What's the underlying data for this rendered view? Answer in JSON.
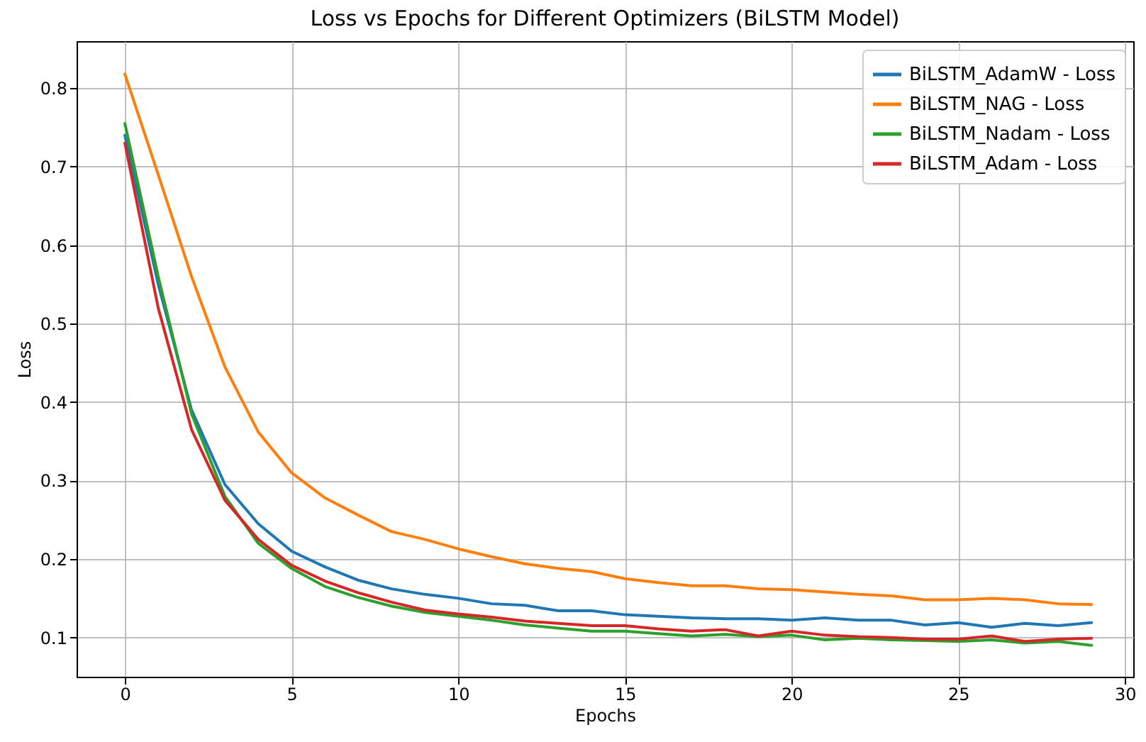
{
  "chart_data": {
    "type": "line",
    "title": "Loss vs Epochs for Different Optimizers (BiLSTM Model)",
    "xlabel": "Epochs",
    "ylabel": "Loss",
    "x": [
      0,
      1,
      2,
      3,
      4,
      5,
      6,
      7,
      8,
      9,
      10,
      11,
      12,
      13,
      14,
      15,
      16,
      17,
      18,
      19,
      20,
      21,
      22,
      23,
      24,
      25,
      26,
      27,
      28,
      29
    ],
    "series": [
      {
        "name": "BiLSTM_AdamW - Loss",
        "color": "#1f77b4",
        "values": [
          0.74,
          0.55,
          0.39,
          0.295,
          0.245,
          0.21,
          0.19,
          0.173,
          0.162,
          0.155,
          0.15,
          0.143,
          0.141,
          0.134,
          0.134,
          0.129,
          0.127,
          0.125,
          0.124,
          0.124,
          0.122,
          0.125,
          0.122,
          0.122,
          0.116,
          0.119,
          0.113,
          0.118,
          0.115,
          0.119
        ]
      },
      {
        "name": "BiLSTM_NAG - Loss",
        "color": "#ff7f0e",
        "values": [
          0.818,
          0.69,
          0.56,
          0.445,
          0.362,
          0.31,
          0.278,
          0.256,
          0.235,
          0.225,
          0.213,
          0.203,
          0.194,
          0.188,
          0.184,
          0.175,
          0.17,
          0.166,
          0.166,
          0.162,
          0.161,
          0.158,
          0.155,
          0.153,
          0.148,
          0.148,
          0.15,
          0.148,
          0.143,
          0.142
        ]
      },
      {
        "name": "BiLSTM_Nadam - Loss",
        "color": "#2ca02c",
        "values": [
          0.755,
          0.56,
          0.385,
          0.28,
          0.22,
          0.188,
          0.165,
          0.151,
          0.14,
          0.132,
          0.127,
          0.122,
          0.116,
          0.112,
          0.108,
          0.108,
          0.105,
          0.102,
          0.104,
          0.101,
          0.103,
          0.097,
          0.099,
          0.097,
          0.096,
          0.095,
          0.097,
          0.093,
          0.095,
          0.09
        ]
      },
      {
        "name": "BiLSTM_Adam - Loss",
        "color": "#d62728",
        "values": [
          0.73,
          0.52,
          0.365,
          0.275,
          0.225,
          0.192,
          0.172,
          0.157,
          0.145,
          0.135,
          0.13,
          0.126,
          0.121,
          0.118,
          0.115,
          0.115,
          0.111,
          0.108,
          0.11,
          0.102,
          0.108,
          0.103,
          0.101,
          0.1,
          0.098,
          0.098,
          0.102,
          0.095,
          0.098,
          0.099
        ]
      }
    ],
    "xlim": [
      -1.45,
      30.25
    ],
    "xticks": [
      0,
      5,
      10,
      15,
      20,
      25,
      30
    ],
    "ylim": [
      0.05,
      0.86
    ],
    "yticks": [
      0.1,
      0.2,
      0.3,
      0.4,
      0.5,
      0.6,
      0.7,
      0.8
    ],
    "grid": true,
    "legend": "top right",
    "marker": "none",
    "line_style": "solid"
  }
}
